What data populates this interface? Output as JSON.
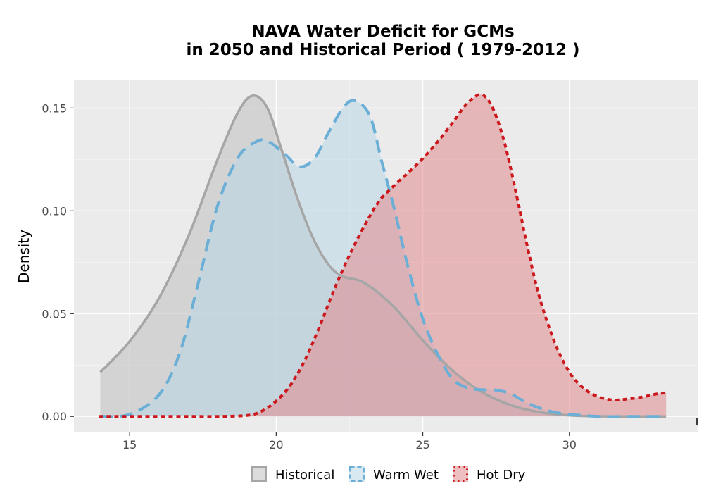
{
  "chart_data": {
    "type": "area",
    "title_lines": [
      "NAVA  Water Deficit for GCMs",
      "in 2050 and Historical Period ( 1979-2012 )"
    ],
    "xlabel": "",
    "ylabel": "Density",
    "xlim": [
      13.1,
      34.4
    ],
    "ylim": [
      -0.0078,
      0.1635
    ],
    "x_ticks": [
      15,
      20,
      25,
      30
    ],
    "x_tick_labels": [
      "15",
      "20",
      "25",
      "30"
    ],
    "y_ticks": [
      0.0,
      0.05,
      0.1,
      0.15
    ],
    "y_tick_labels": [
      "0.00",
      "0.05",
      "0.10",
      "0.15"
    ],
    "grid": true,
    "legend_position": "bottom",
    "series": [
      {
        "name": "Historical",
        "line_style": "solid",
        "line_color": "#a6a6a6",
        "fill_color": "#bfbfbf",
        "x": [
          14.0,
          15.0,
          16.0,
          17.0,
          18.0,
          18.7,
          19.2,
          19.7,
          20.2,
          20.7,
          21.2,
          21.7,
          22.2,
          23.0,
          24.0,
          25.0,
          26.0,
          27.0,
          28.0,
          29.0,
          30.0,
          31.0,
          32.0,
          33.0,
          33.3
        ],
        "y": [
          0.0215,
          0.0365,
          0.0575,
          0.0875,
          0.125,
          0.148,
          0.156,
          0.15,
          0.129,
          0.107,
          0.0885,
          0.0755,
          0.0685,
          0.065,
          0.0535,
          0.037,
          0.0225,
          0.012,
          0.0055,
          0.002,
          0.0005,
          0.0001,
          0.0,
          0.0,
          0.0
        ]
      },
      {
        "name": "Warm Wet",
        "line_style": "dashed",
        "line_color": "#6baed6",
        "fill_color": "#b9d7e8",
        "x": [
          14.0,
          15.0,
          16.0,
          16.7,
          17.3,
          18.0,
          18.7,
          19.3,
          19.7,
          20.3,
          20.8,
          21.3,
          21.8,
          22.3,
          22.7,
          23.2,
          23.6,
          24.0,
          24.5,
          25.0,
          25.5,
          26.0,
          26.5,
          27.0,
          27.5,
          28.0,
          28.5,
          29.0,
          29.5,
          30.0,
          31.0,
          32.0,
          33.0,
          33.3
        ],
        "y": [
          0.0,
          0.001,
          0.0105,
          0.0305,
          0.0625,
          0.1025,
          0.126,
          0.1335,
          0.134,
          0.1275,
          0.1215,
          0.1255,
          0.1385,
          0.1505,
          0.1535,
          0.146,
          0.124,
          0.1025,
          0.0725,
          0.0475,
          0.0305,
          0.0185,
          0.014,
          0.013,
          0.0128,
          0.011,
          0.007,
          0.004,
          0.002,
          0.001,
          0.0,
          0.0,
          0.0,
          0.0
        ]
      },
      {
        "name": "Hot Dry",
        "line_style": "dotted",
        "line_color": "#cb181d",
        "fill_color": "#e08a8e",
        "x": [
          14.0,
          15.0,
          16.0,
          17.0,
          18.0,
          19.0,
          19.5,
          20.0,
          20.5,
          21.0,
          21.5,
          22.0,
          22.5,
          23.0,
          23.5,
          24.0,
          24.5,
          25.0,
          25.5,
          26.0,
          26.5,
          27.0,
          27.4,
          27.8,
          28.2,
          28.6,
          29.0,
          29.5,
          30.0,
          30.5,
          31.0,
          31.5,
          32.0,
          32.5,
          33.0,
          33.3
        ],
        "y": [
          0.0,
          0.0,
          0.0,
          0.0,
          0.0,
          0.0005,
          0.0025,
          0.0075,
          0.0155,
          0.028,
          0.0445,
          0.0625,
          0.0785,
          0.0925,
          0.1045,
          0.112,
          0.1185,
          0.1255,
          0.1335,
          0.1425,
          0.152,
          0.1565,
          0.1495,
          0.1325,
          0.1075,
          0.0805,
          0.057,
          0.036,
          0.0215,
          0.0135,
          0.0095,
          0.008,
          0.0085,
          0.0095,
          0.011,
          0.0115
        ]
      }
    ]
  }
}
